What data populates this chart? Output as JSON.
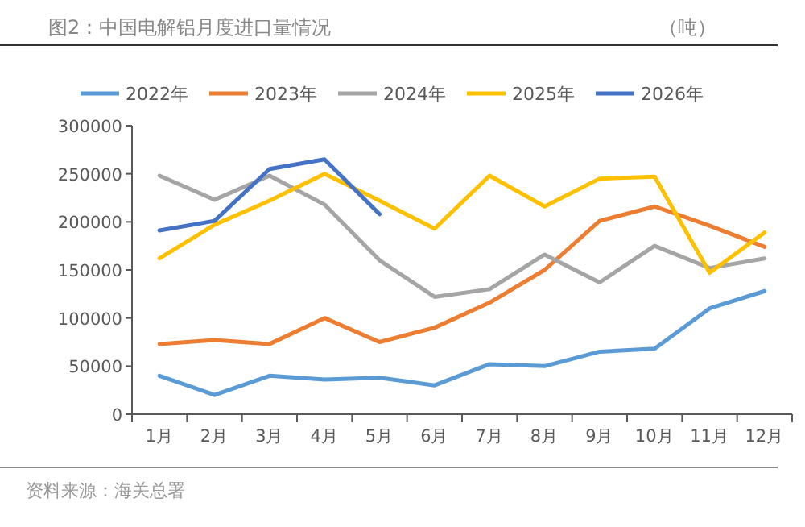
{
  "chart_data": {
    "type": "line",
    "title": "图2：中国电解铝月度进口量情况",
    "subtitle": "（吨）",
    "annotations": [
      "资料来源：海关总署"
    ],
    "categories": [
      "1月",
      "2月",
      "3月",
      "4月",
      "5月",
      "6月",
      "7月",
      "8月",
      "9月",
      "10月",
      "11月",
      "12月"
    ],
    "series": [
      {
        "name": "2022年",
        "color": "#5b9bd5",
        "values": [
          40000,
          20000,
          40000,
          36000,
          38000,
          30000,
          52000,
          50000,
          65000,
          68000,
          110000,
          128000
        ]
      },
      {
        "name": "2023年",
        "color": "#ed7d31",
        "values": [
          73000,
          77000,
          73000,
          100000,
          75000,
          90000,
          116000,
          150000,
          201000,
          216000,
          196000,
          174000
        ]
      },
      {
        "name": "2024年",
        "color": "#a5a5a5",
        "values": [
          248000,
          223000,
          248000,
          218000,
          160000,
          122000,
          130000,
          166000,
          137000,
          175000,
          152000,
          162000
        ]
      },
      {
        "name": "2025年",
        "color": "#ffc000",
        "values": [
          162000,
          197000,
          222000,
          250000,
          222000,
          193000,
          248000,
          216000,
          245000,
          247000,
          147000,
          189000
        ]
      },
      {
        "name": "2026年",
        "color": "#4472c4",
        "values": [
          191000,
          201000,
          255000,
          265000,
          208000,
          null,
          null,
          null,
          null,
          null,
          null,
          null
        ]
      }
    ],
    "ylim": [
      0,
      300000
    ],
    "yticks": [
      0,
      50000,
      100000,
      150000,
      200000,
      250000,
      300000
    ],
    "legend": "top",
    "marker": "none",
    "line_style": "solid"
  }
}
